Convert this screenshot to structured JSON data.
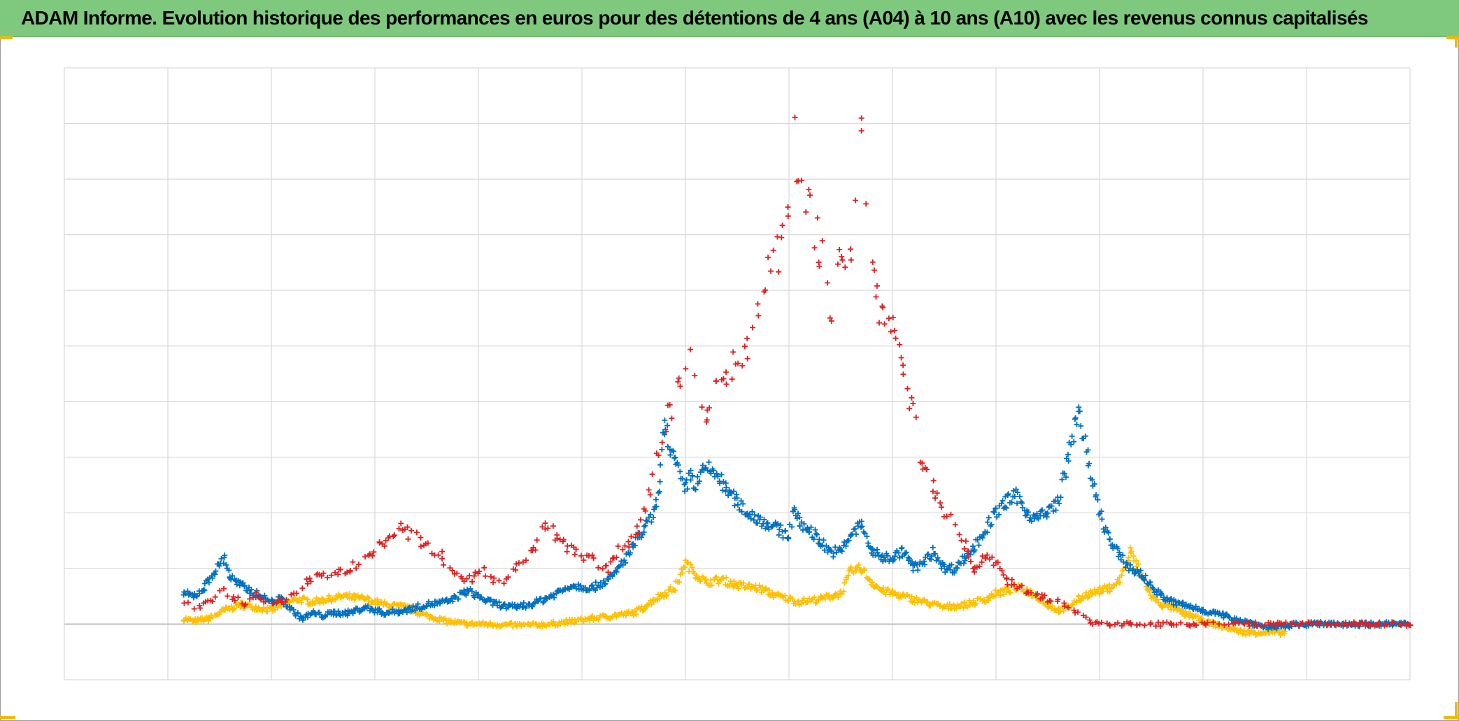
{
  "title": "ADAM Informe. Evolution historique des performances en euros pour des détentions de 4 ans (A04) à 10 ans (A10) avec les revenus connus capitalisés",
  "colors": {
    "title_bg": "#7fc97f",
    "grid": "#d9d9d9",
    "axis": "#bfbfbf",
    "corner": "#f5b800"
  },
  "chart_data": {
    "type": "scatter",
    "marker": "plus",
    "title": "ADAM Informe. Evolution historique des performances en euros pour des détentions de 4 ans (A04) à 10 ans (A10) avec les revenus connus capitalisés",
    "xlabel": "",
    "ylabel": "",
    "xlim": [
      0,
      13
    ],
    "ylim": [
      -1,
      10
    ],
    "grid": true,
    "legend": "none",
    "tick_labels_visible": false,
    "series": [
      {
        "color": "#ffc000",
        "x": [
          1.15,
          1.25,
          1.4,
          1.55,
          1.7,
          1.85,
          2.0,
          2.1,
          2.25,
          2.4,
          2.55,
          2.7,
          2.9,
          3.1,
          3.3,
          3.5,
          3.7,
          3.9,
          4.1,
          4.3,
          4.5,
          4.7,
          4.9,
          5.1,
          5.3,
          5.5,
          5.6,
          5.7,
          5.8,
          5.9,
          6.0,
          6.1,
          6.2,
          6.35,
          6.5,
          6.7,
          6.9,
          7.1,
          7.3,
          7.5,
          7.6,
          7.7,
          7.8,
          7.9,
          8.0,
          8.1,
          8.3,
          8.5,
          8.7,
          8.9,
          9.0,
          9.1,
          9.2,
          9.3,
          9.4,
          9.5,
          9.6,
          9.7,
          9.8,
          9.9,
          10.0,
          10.1,
          10.2,
          10.3,
          10.4,
          10.5,
          10.6,
          10.7,
          10.8,
          10.9,
          11.0,
          11.1,
          11.2,
          11.3,
          11.4,
          11.5,
          11.6,
          11.7,
          11.8
        ],
        "y": [
          0.1,
          0.05,
          0.1,
          0.25,
          0.35,
          0.3,
          0.25,
          0.35,
          0.45,
          0.4,
          0.45,
          0.5,
          0.45,
          0.35,
          0.3,
          0.15,
          0.05,
          0.0,
          0.0,
          -0.02,
          -0.02,
          0.0,
          0.05,
          0.1,
          0.15,
          0.2,
          0.3,
          0.45,
          0.55,
          0.65,
          1.1,
          0.9,
          0.75,
          0.8,
          0.7,
          0.65,
          0.5,
          0.4,
          0.45,
          0.55,
          0.95,
          1.0,
          0.75,
          0.6,
          0.55,
          0.5,
          0.4,
          0.3,
          0.35,
          0.45,
          0.55,
          0.6,
          0.65,
          0.6,
          0.5,
          0.35,
          0.25,
          0.3,
          0.45,
          0.55,
          0.6,
          0.65,
          0.8,
          1.3,
          0.9,
          0.5,
          0.35,
          0.3,
          0.2,
          0.15,
          0.05,
          0.0,
          -0.05,
          -0.1,
          -0.15,
          -0.15,
          -0.15,
          -0.15,
          -0.15
        ]
      },
      {
        "color": "#0070c0",
        "x": [
          1.15,
          1.25,
          1.35,
          1.45,
          1.55,
          1.6,
          1.7,
          1.8,
          1.9,
          2.0,
          2.1,
          2.2,
          2.3,
          2.4,
          2.5,
          2.6,
          2.75,
          2.9,
          3.1,
          3.3,
          3.5,
          3.7,
          3.9,
          4.1,
          4.3,
          4.5,
          4.7,
          4.9,
          5.1,
          5.3,
          5.5,
          5.6,
          5.7,
          5.75,
          5.8,
          5.9,
          6.0,
          6.05,
          6.1,
          6.2,
          6.3,
          6.4,
          6.5,
          6.6,
          6.7,
          6.8,
          6.9,
          7.0,
          7.05,
          7.1,
          7.2,
          7.3,
          7.4,
          7.5,
          7.6,
          7.7,
          7.8,
          7.9,
          8.0,
          8.1,
          8.15,
          8.2,
          8.3,
          8.4,
          8.5,
          8.6,
          8.7,
          8.8,
          8.9,
          9.0,
          9.1,
          9.2,
          9.3,
          9.4,
          9.5,
          9.6,
          9.7,
          9.8,
          9.9,
          10.0,
          10.1,
          10.2,
          10.3,
          10.4,
          10.5,
          10.6,
          10.7,
          10.8,
          10.9,
          11.0,
          11.1,
          11.2,
          11.3,
          11.4,
          11.5,
          11.6,
          11.7,
          11.8,
          11.9,
          12.0,
          12.1,
          12.2,
          12.3,
          12.4,
          12.5,
          12.6,
          12.7,
          12.8,
          12.9,
          13.0
        ],
        "y": [
          0.55,
          0.5,
          0.65,
          0.95,
          1.2,
          0.85,
          0.7,
          0.6,
          0.5,
          0.4,
          0.45,
          0.25,
          0.1,
          0.2,
          0.15,
          0.2,
          0.2,
          0.3,
          0.2,
          0.25,
          0.35,
          0.4,
          0.6,
          0.4,
          0.3,
          0.35,
          0.5,
          0.7,
          0.65,
          0.85,
          1.4,
          1.7,
          2.0,
          2.5,
          3.6,
          2.9,
          2.4,
          2.7,
          2.5,
          2.8,
          2.7,
          2.4,
          2.2,
          2.0,
          1.9,
          1.8,
          1.7,
          1.6,
          2.1,
          1.8,
          1.7,
          1.5,
          1.3,
          1.3,
          1.6,
          1.8,
          1.3,
          1.2,
          1.2,
          1.3,
          1.2,
          1.0,
          1.1,
          1.3,
          1.0,
          1.0,
          1.2,
          1.4,
          1.7,
          2.0,
          2.2,
          2.3,
          2.0,
          1.9,
          2.0,
          2.2,
          3.0,
          3.9,
          2.8,
          2.0,
          1.5,
          1.2,
          1.0,
          0.9,
          0.7,
          0.5,
          0.4,
          0.35,
          0.3,
          0.25,
          0.2,
          0.15,
          0.1,
          0.05,
          0.0,
          -0.05,
          -0.05,
          -0.05,
          0.0,
          0.0,
          0.0,
          0.0,
          0.0,
          0.0,
          0.0,
          0.0,
          0.0,
          0.0,
          0.0,
          0.0
        ]
      },
      {
        "color": "#e02020",
        "x": [
          1.15,
          1.25,
          1.35,
          1.45,
          1.55,
          1.65,
          1.75,
          1.85,
          1.95,
          2.05,
          2.15,
          2.25,
          2.35,
          2.45,
          2.55,
          2.65,
          2.75,
          2.85,
          2.95,
          3.05,
          3.15,
          3.25,
          3.35,
          3.45,
          3.55,
          3.65,
          3.75,
          3.85,
          3.95,
          4.05,
          4.15,
          4.25,
          4.35,
          4.45,
          4.55,
          4.65,
          4.75,
          4.85,
          4.95,
          5.05,
          5.15,
          5.25,
          5.35,
          5.45,
          5.55,
          5.6,
          5.65,
          5.75,
          5.85,
          5.95,
          6.05,
          6.1,
          6.2,
          6.3,
          6.4,
          6.5,
          6.6,
          6.7,
          6.8,
          6.9,
          7.0,
          7.05,
          7.1,
          7.2,
          7.3,
          7.4,
          7.5,
          7.6,
          7.7,
          7.8,
          7.9,
          8.0,
          8.1,
          8.2,
          8.3,
          8.4,
          8.5,
          8.6,
          8.7,
          8.8,
          8.9,
          9.0,
          9.1,
          9.2,
          9.3,
          9.4,
          9.5,
          9.6,
          9.7,
          9.8,
          9.9,
          10.0,
          10.1,
          10.3,
          10.5,
          10.7,
          10.9,
          11.1,
          11.3,
          11.5,
          11.7,
          11.9,
          12.1,
          12.3,
          12.5,
          12.7,
          12.9,
          13.0
        ],
        "y": [
          0.4,
          0.3,
          0.35,
          0.5,
          0.6,
          0.45,
          0.35,
          0.5,
          0.4,
          0.45,
          0.4,
          0.6,
          0.8,
          0.9,
          0.85,
          0.9,
          1.0,
          1.1,
          1.2,
          1.4,
          1.5,
          1.7,
          1.6,
          1.5,
          1.3,
          1.2,
          0.9,
          0.8,
          0.85,
          0.95,
          0.8,
          0.75,
          1.0,
          1.2,
          1.4,
          1.8,
          1.6,
          1.4,
          1.3,
          1.2,
          1.1,
          1.0,
          1.3,
          1.5,
          1.7,
          2.0,
          2.4,
          3.2,
          3.8,
          4.4,
          4.7,
          4.4,
          3.5,
          4.2,
          4.5,
          4.7,
          5.0,
          5.7,
          6.4,
          6.7,
          7.3,
          8.7,
          7.8,
          7.5,
          6.8,
          5.5,
          6.5,
          6.8,
          8.7,
          6.5,
          5.5,
          5.5,
          4.5,
          3.8,
          2.8,
          2.5,
          2.0,
          1.8,
          1.4,
          1.0,
          1.2,
          1.1,
          0.8,
          0.7,
          0.6,
          0.5,
          0.45,
          0.4,
          0.35,
          0.2,
          0.05,
          0.0,
          0.0,
          0.0,
          0.0,
          0.0,
          0.0,
          0.0,
          0.0,
          0.0,
          0.0,
          0.0,
          0.0,
          0.0,
          0.0,
          0.0,
          0.0,
          0.0
        ]
      }
    ]
  }
}
